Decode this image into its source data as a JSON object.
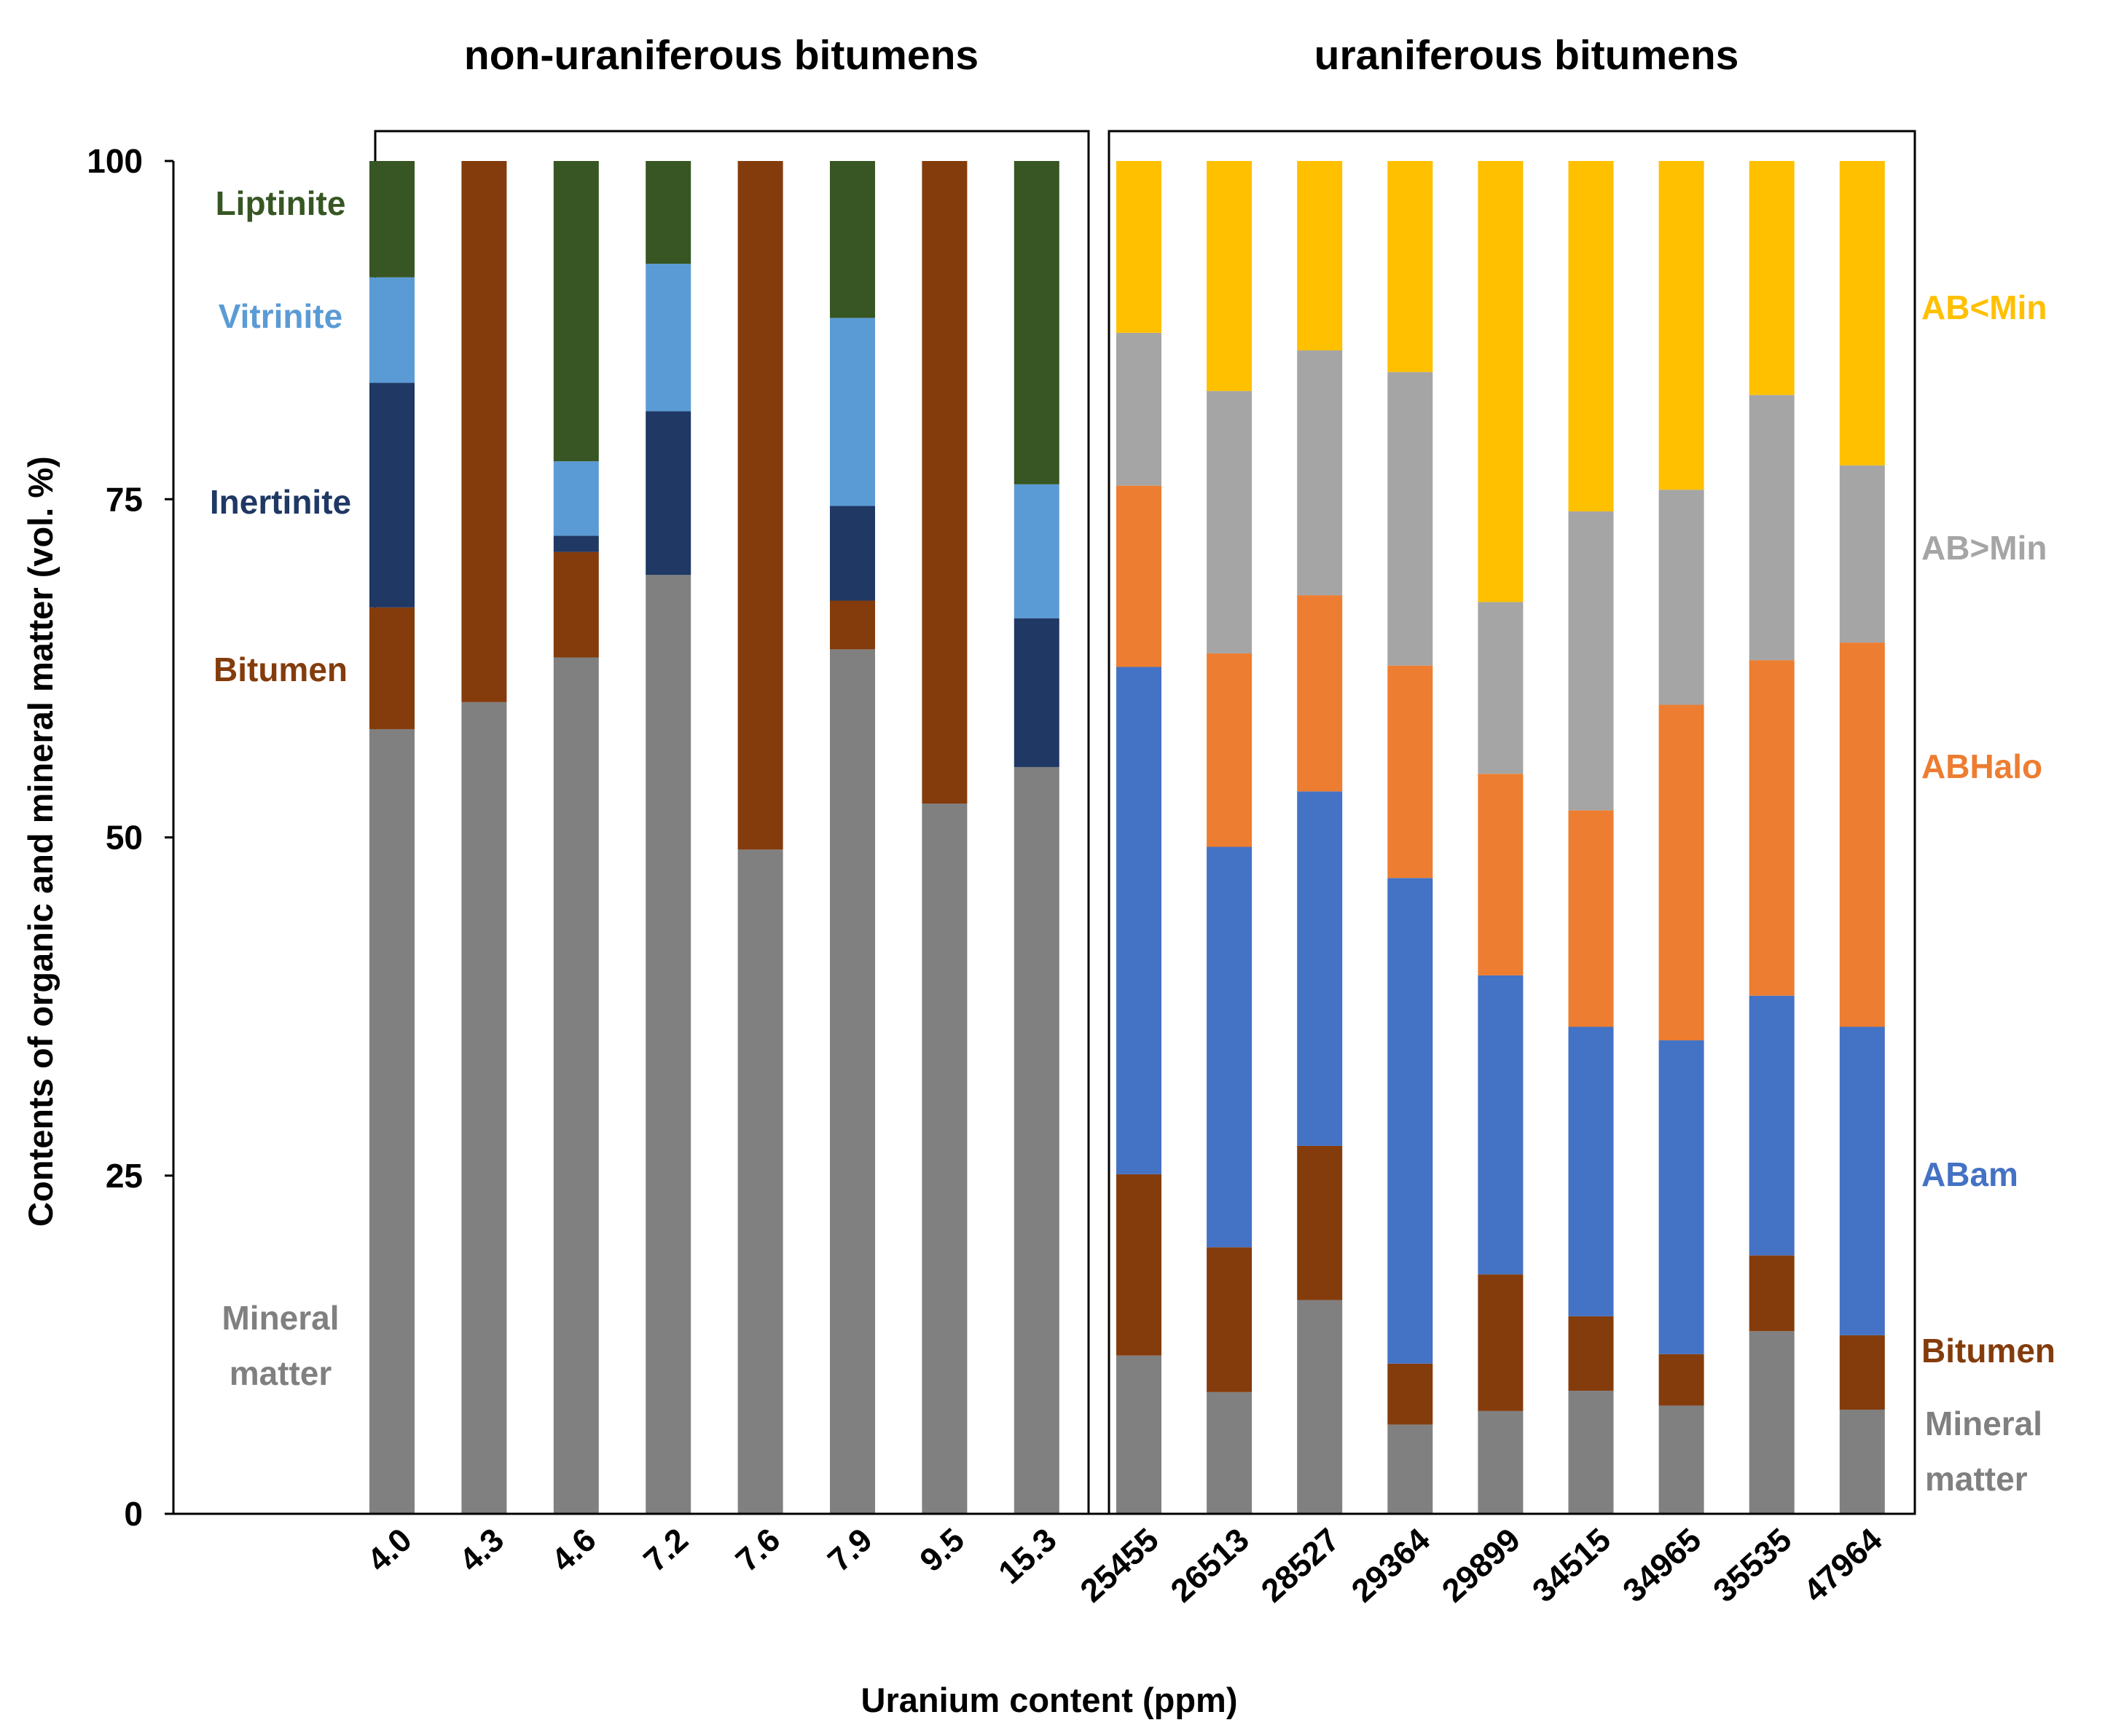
{
  "chart_data": {
    "type": "stacked-bar",
    "title": "",
    "xlabel": "Uranium content (ppm)",
    "ylabel": "Contents of organic and mineral matter (vol. %)",
    "ylim": [
      0,
      100
    ],
    "yticks": [
      "0",
      "25",
      "50",
      "75",
      "100"
    ],
    "grid": false,
    "colors": {
      "mineral_matter": "#808080",
      "bitumen": "#843C0C",
      "inertinite": "#1F3864",
      "vitrinite": "#5B9BD5",
      "liptinite": "#375623",
      "abam": "#4472C4",
      "abhalo": "#ED7D31",
      "ab_gt_min": "#A5A5A5",
      "ab_lt_min": "#FFC000"
    },
    "groups": [
      {
        "title": "non-uraniferous bitumens",
        "categories": [
          "4.0",
          "4.3",
          "4.6",
          "7.2",
          "7.6",
          "7.9",
          "9.5",
          "15.3"
        ],
        "series": [
          {
            "key": "mineral_matter",
            "name": "Mineral matter",
            "values": [
              58,
              60,
              63.3,
              69.4,
              49.1,
              63.9,
              52.5,
              55.2
            ]
          },
          {
            "key": "bitumen",
            "name": "Bitumen",
            "values": [
              9,
              40,
              7.8,
              0,
              50.9,
              3.6,
              47.5,
              0
            ]
          },
          {
            "key": "inertinite",
            "name": "Inertinite",
            "values": [
              16.6,
              0,
              1.2,
              12.1,
              0,
              7,
              0,
              11
            ]
          },
          {
            "key": "vitrinite",
            "name": "Vitrinite",
            "values": [
              7.8,
              0,
              5.5,
              10.9,
              0,
              13.9,
              0,
              9.9
            ]
          },
          {
            "key": "liptinite",
            "name": "Liptinite",
            "values": [
              8.6,
              0,
              22.2,
              7.6,
              0,
              11.6,
              0,
              23.9
            ]
          }
        ],
        "legend": [
          {
            "key": "liptinite",
            "label": "Liptinite"
          },
          {
            "key": "vitrinite",
            "label": "Vitrinite"
          },
          {
            "key": "inertinite",
            "label": "Inertinite"
          },
          {
            "key": "bitumen",
            "label": "Bitumen"
          },
          {
            "key": "mineral_matter",
            "label": "Mineral matter"
          }
        ]
      },
      {
        "title": "uraniferous bitumens",
        "categories": [
          "25455",
          "26513",
          "28527",
          "29364",
          "29899",
          "34515",
          "34965",
          "35535",
          "47964"
        ],
        "series": [
          {
            "key": "mineral_matter",
            "name": "Mineral matter",
            "values": [
              11.7,
              9,
              15.8,
              6.6,
              7.6,
              9.1,
              8,
              13.5,
              7.7
            ]
          },
          {
            "key": "bitumen",
            "name": "Bitumen",
            "values": [
              13.4,
              10.7,
              11.4,
              4.5,
              10.1,
              5.5,
              3.8,
              5.6,
              5.5
            ]
          },
          {
            "key": "abam",
            "name": "ABam",
            "values": [
              37.5,
              29.6,
              26.2,
              35.9,
              22.1,
              21.4,
              23.2,
              19.2,
              22.8
            ]
          },
          {
            "key": "abhalo",
            "name": "ABHalo",
            "values": [
              13.4,
              14.3,
              14.5,
              15.7,
              14.9,
              16,
              24.8,
              24.8,
              28.4
            ]
          },
          {
            "key": "ab_gt_min",
            "name": "AB>Min",
            "values": [
              11.3,
              19.4,
              18.1,
              21.7,
              12.7,
              22.1,
              15.9,
              19.6,
              13.1
            ]
          },
          {
            "key": "ab_lt_min",
            "name": "AB<Min",
            "values": [
              12.7,
              17,
              14,
              15.6,
              32.6,
              25.9,
              24.3,
              17.3,
              22.5
            ]
          }
        ],
        "legend": [
          {
            "key": "ab_lt_min",
            "label": "AB<Min"
          },
          {
            "key": "ab_gt_min",
            "label": "AB>Min"
          },
          {
            "key": "abhalo",
            "label": "ABHalo"
          },
          {
            "key": "abam",
            "label": "ABam"
          },
          {
            "key": "bitumen",
            "label": "Bitumen"
          },
          {
            "key": "mineral_matter",
            "label": "Mineral matter"
          }
        ]
      }
    ]
  }
}
